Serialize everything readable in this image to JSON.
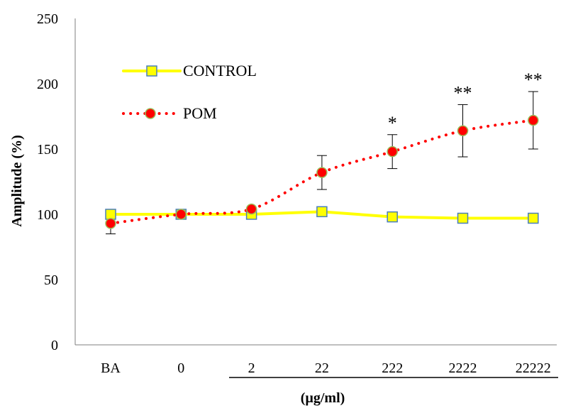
{
  "chart_data": {
    "type": "line",
    "title": "",
    "xlabel": "(µg/ml)",
    "ylabel": "Amplitude (%)",
    "ylim": [
      0,
      250
    ],
    "yticks": [
      0,
      50,
      100,
      150,
      200,
      250
    ],
    "grid": false,
    "legend_position": "top-left",
    "categories": [
      "BA",
      "0",
      "2",
      "22",
      "222",
      "2222",
      "22222"
    ],
    "series": [
      {
        "name": "CONTROL",
        "color": "#ffff00",
        "marker_fill": "#ffff00",
        "marker_edge": "#4a7ebb",
        "marker": "square",
        "line_style": "solid",
        "values": [
          100,
          100,
          100,
          102,
          98,
          97,
          97
        ]
      },
      {
        "name": "POM",
        "color": "#ff0000",
        "marker_fill": "#ff0000",
        "marker_edge": "#9bbb59",
        "marker": "circle",
        "line_style": "dotted",
        "values": [
          93,
          100,
          104,
          132,
          148,
          164,
          172
        ],
        "error": [
          null,
          null,
          null,
          13,
          13,
          20,
          22
        ],
        "error_low": [
          8,
          null,
          null,
          null,
          null,
          null,
          null
        ],
        "significance": [
          "",
          "",
          "",
          "",
          "*",
          "**",
          "**"
        ]
      }
    ]
  }
}
